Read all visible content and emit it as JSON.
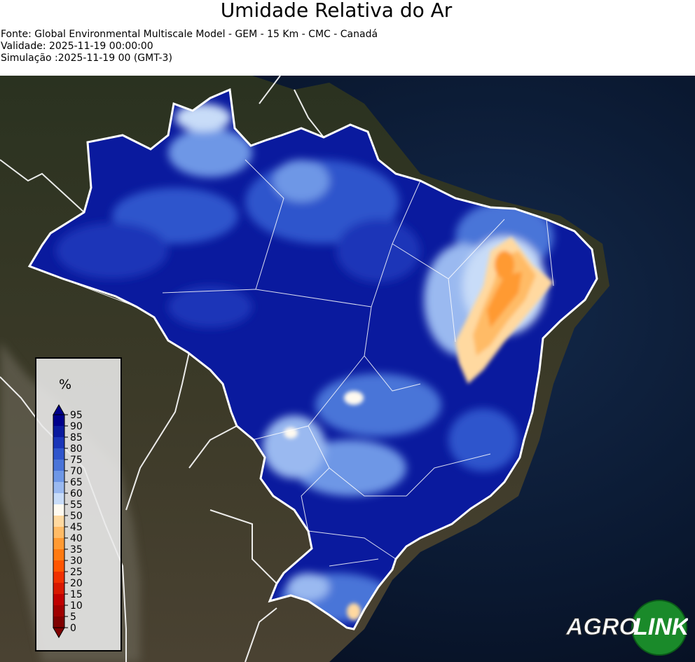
{
  "title": "Umidade Relativa do Ar",
  "meta": {
    "source": "Fonte: Global Environmental Multiscale Model - GEM - 15 Km - CMC - Canadá",
    "validity": "Validade: 2025-11-19 00:00:00",
    "simulation": "Simulação :2025-11-19 00 (GMT-3)"
  },
  "legend": {
    "unit": "%",
    "ticks": [
      "95",
      "90",
      "85",
      "80",
      "75",
      "70",
      "65",
      "60",
      "55",
      "50",
      "45",
      "40",
      "35",
      "30",
      "25",
      "20",
      "15",
      "10",
      "5",
      "0"
    ],
    "colors": [
      "#00008b",
      "#0a1a9e",
      "#1a35b8",
      "#2f55cc",
      "#4a74d8",
      "#6e97e6",
      "#9ab9f0",
      "#c8dcf8",
      "#fffaf0",
      "#ffd9a0",
      "#ffbb66",
      "#ff9a33",
      "#ff7a10",
      "#ff5500",
      "#f03000",
      "#d81800",
      "#c00000",
      "#a00000",
      "#800000"
    ]
  },
  "map": {
    "ocean_color": "#0a1830",
    "land_color": "#3a3a2a",
    "brazil_base_color": "#0a1a9e",
    "dry_region_color": "#ff9a33",
    "border_color": "#ffffff"
  },
  "logo": {
    "text_agro": "AGRO",
    "text_link": "LINK"
  }
}
